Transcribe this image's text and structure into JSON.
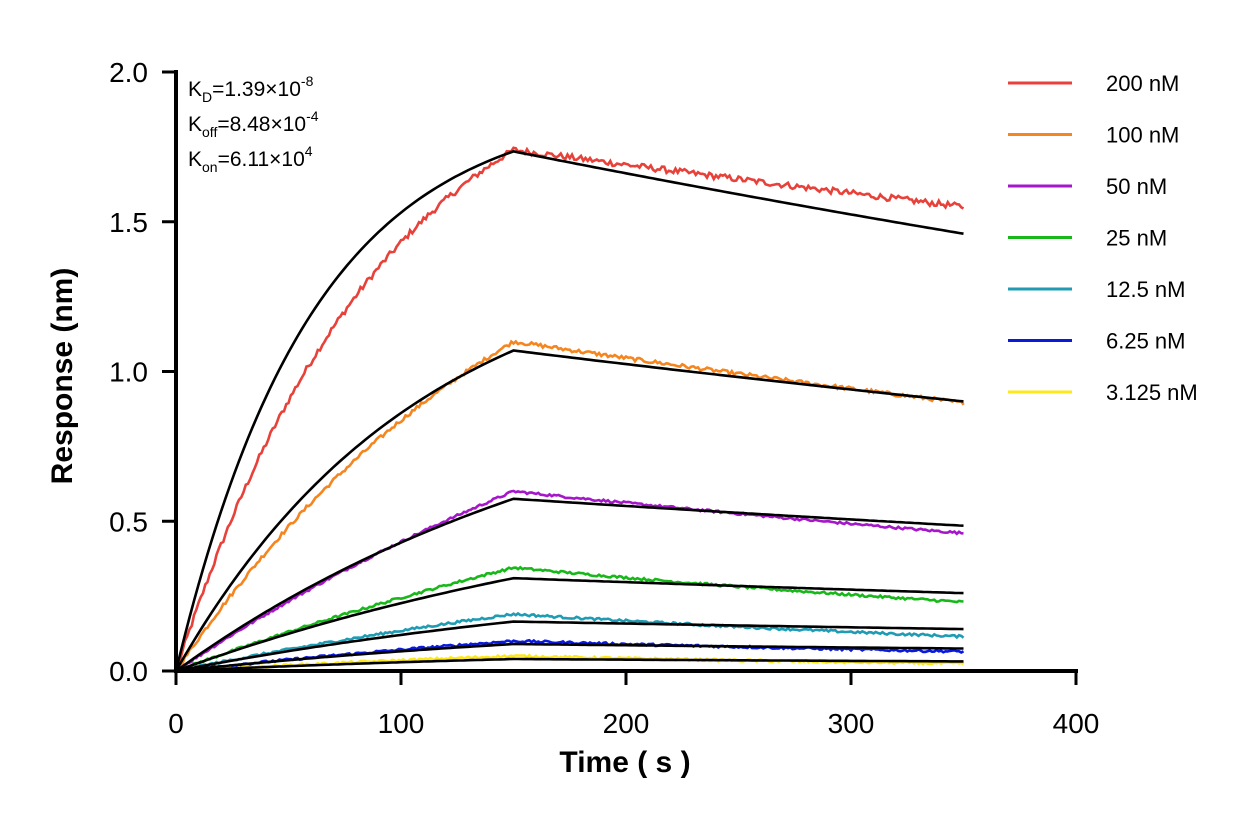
{
  "chart_data": {
    "type": "line",
    "title": "",
    "xlabel": "Time ( s )",
    "ylabel": "Response (nm)",
    "xlim": [
      0,
      400
    ],
    "ylim": [
      0,
      2.0
    ],
    "x_ticks": [
      "0",
      "100",
      "200",
      "300",
      "400"
    ],
    "y_ticks": [
      "0.0",
      "0.5",
      "1.0",
      "1.5",
      "2.0"
    ],
    "grid": false,
    "legend_position": "top-right",
    "association_end": 150,
    "dissociation_end": 350,
    "annotations": {
      "kd": {
        "main": "K",
        "sub": "D",
        "value": "=1.39×10",
        "exp": "-8"
      },
      "koff": {
        "main": "K",
        "sub": "off",
        "value": "=8.48×10",
        "exp": "-4"
      },
      "kon": {
        "main": "K",
        "sub": "on",
        "value": "=6.11×10",
        "exp": "4"
      }
    },
    "series": [
      {
        "name": "200 nM",
        "color": "#e8413a",
        "obs_peak": 1.74,
        "obs_end": 1.55,
        "fit_peak": 1.735,
        "fit_end": 1.46,
        "fit_k": 0.0165
      },
      {
        "name": "100 nM",
        "color": "#f5861f",
        "obs_peak": 1.1,
        "obs_end": 0.895,
        "fit_peak": 1.07,
        "fit_end": 0.9,
        "fit_k": 0.0093
      },
      {
        "name": "50 nM",
        "color": "#a517c9",
        "obs_peak": 0.6,
        "obs_end": 0.46,
        "fit_peak": 0.575,
        "fit_end": 0.485,
        "fit_k": 0.005
      },
      {
        "name": "25 nM",
        "color": "#19b81a",
        "obs_peak": 0.345,
        "obs_end": 0.23,
        "fit_peak": 0.31,
        "fit_end": 0.26,
        "fit_k": 0.004
      },
      {
        "name": "12.5 nM",
        "color": "#1f9cb3",
        "obs_peak": 0.19,
        "obs_end": 0.115,
        "fit_peak": 0.165,
        "fit_end": 0.14,
        "fit_k": 0.004
      },
      {
        "name": "6.25 nM",
        "color": "#0a1adc",
        "obs_peak": 0.1,
        "obs_end": 0.065,
        "fit_peak": 0.09,
        "fit_end": 0.075,
        "fit_k": 0.004
      },
      {
        "name": "3.125 nM",
        "color": "#ffe81a",
        "obs_peak": 0.05,
        "obs_end": 0.025,
        "fit_peak": 0.04,
        "fit_end": 0.032,
        "fit_k": 0.004
      }
    ],
    "fit_color": "#000000"
  }
}
